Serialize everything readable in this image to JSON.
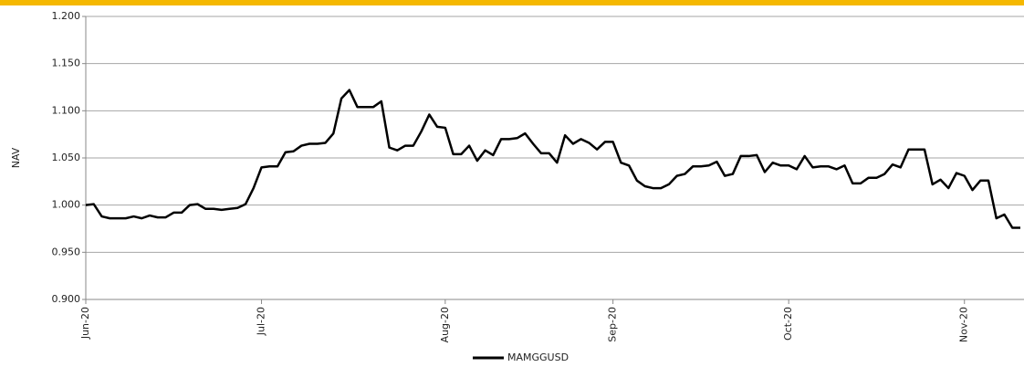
{
  "chart_data": {
    "type": "line",
    "ylabel": "NAV",
    "categories": [
      "Jun-20",
      null,
      null,
      null,
      null,
      null,
      null,
      null,
      null,
      null,
      null,
      null,
      null,
      null,
      null,
      null,
      null,
      null,
      null,
      null,
      null,
      null,
      "Jul-20",
      null,
      null,
      null,
      null,
      null,
      null,
      null,
      null,
      null,
      null,
      null,
      null,
      null,
      null,
      null,
      null,
      null,
      null,
      null,
      null,
      null,
      null,
      "Aug-20",
      null,
      null,
      null,
      null,
      null,
      null,
      null,
      null,
      null,
      null,
      null,
      null,
      null,
      null,
      null,
      null,
      null,
      null,
      null,
      null,
      "Sep-20",
      null,
      null,
      null,
      null,
      null,
      null,
      null,
      null,
      null,
      null,
      null,
      null,
      null,
      null,
      null,
      null,
      null,
      null,
      null,
      null,
      null,
      "Oct-20",
      null,
      null,
      null,
      null,
      null,
      null,
      null,
      null,
      null,
      null,
      null,
      null,
      null,
      null,
      null,
      null,
      null,
      null,
      null,
      null,
      null,
      "Nov-20",
      null,
      null,
      null,
      null,
      null,
      null,
      null
    ],
    "series": [
      {
        "name": "MAMGGUSD",
        "color": "#000000",
        "values": [
          1.0,
          1.001,
          0.988,
          0.986,
          0.986,
          0.986,
          0.988,
          0.986,
          0.989,
          0.987,
          0.987,
          0.992,
          0.992,
          1.0,
          1.001,
          0.996,
          0.996,
          0.995,
          0.996,
          0.997,
          1.001,
          1.018,
          1.04,
          1.041,
          1.041,
          1.056,
          1.057,
          1.063,
          1.065,
          1.065,
          1.066,
          1.076,
          1.113,
          1.122,
          1.104,
          1.104,
          1.104,
          1.11,
          1.061,
          1.058,
          1.063,
          1.063,
          1.078,
          1.096,
          1.083,
          1.082,
          1.054,
          1.054,
          1.063,
          1.047,
          1.058,
          1.053,
          1.07,
          1.07,
          1.071,
          1.076,
          1.065,
          1.055,
          1.055,
          1.045,
          1.074,
          1.065,
          1.07,
          1.066,
          1.059,
          1.067,
          1.067,
          1.045,
          1.042,
          1.026,
          1.02,
          1.018,
          1.018,
          1.022,
          1.031,
          1.033,
          1.041,
          1.041,
          1.042,
          1.046,
          1.031,
          1.033,
          1.052,
          1.052,
          1.053,
          1.035,
          1.045,
          1.042,
          1.042,
          1.038,
          1.052,
          1.04,
          1.041,
          1.041,
          1.038,
          1.042,
          1.023,
          1.023,
          1.029,
          1.029,
          1.033,
          1.043,
          1.04,
          1.059,
          1.059,
          1.059,
          1.022,
          1.027,
          1.018,
          1.034,
          1.031,
          1.016,
          1.026,
          1.026,
          0.986,
          0.99,
          0.976,
          0.976
        ]
      }
    ],
    "ylim": [
      0.9,
      1.2
    ],
    "yticks": [
      {
        "value": 0.9,
        "label": "0.900"
      },
      {
        "value": 0.95,
        "label": "0.950"
      },
      {
        "value": 1.0,
        "label": "1.000"
      },
      {
        "value": 1.05,
        "label": "1.050"
      },
      {
        "value": 1.1,
        "label": "1.100"
      },
      {
        "value": 1.15,
        "label": "1.150"
      },
      {
        "value": 1.2,
        "label": "1.200"
      }
    ],
    "grid": true
  }
}
